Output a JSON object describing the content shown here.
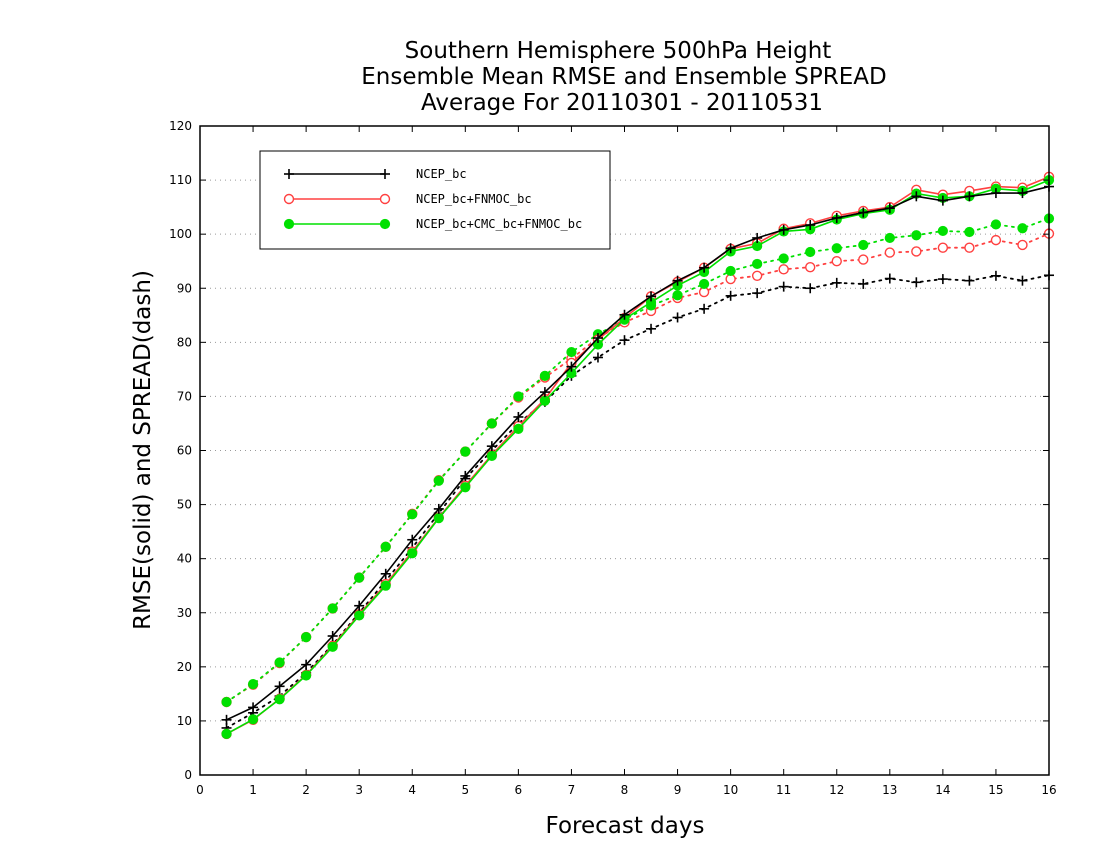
{
  "chart_data": {
    "type": "line",
    "title": [
      "Southern Hemisphere 500hPa Height",
      "Ensemble Mean RMSE and Ensemble SPREAD",
      "Average For 20110301 - 20110531"
    ],
    "xlabel": "Forecast days",
    "ylabel": "RMSE(solid) and SPREAD(dash)",
    "xlim": [
      0,
      16
    ],
    "ylim": [
      0,
      120
    ],
    "xticks": [
      0,
      1,
      2,
      3,
      4,
      5,
      6,
      7,
      8,
      9,
      10,
      11,
      12,
      13,
      14,
      15,
      16
    ],
    "yticks": [
      0,
      10,
      20,
      30,
      40,
      50,
      60,
      70,
      80,
      90,
      100,
      110,
      120
    ],
    "grid": "horizontal dotted",
    "legend_position": "top-left",
    "x": [
      0.5,
      1,
      1.5,
      2,
      2.5,
      3,
      3.5,
      4,
      4.5,
      5,
      5.5,
      6,
      6.5,
      7,
      7.5,
      8,
      8.5,
      9,
      9.5,
      10,
      10.5,
      11,
      11.5,
      12,
      12.5,
      13,
      13.5,
      14,
      14.5,
      15,
      15.5,
      16
    ],
    "series": [
      {
        "name": "NCEP_bc",
        "color": "#000000",
        "marker": "plus",
        "rmse": [
          10.2,
          12.5,
          16.4,
          20.4,
          25.7,
          31.3,
          37.2,
          43.5,
          49.2,
          55.3,
          60.8,
          66.2,
          70.8,
          75.5,
          80.8,
          85.1,
          88.5,
          91.4,
          93.8,
          97.4,
          99.3,
          100.8,
          101.7,
          103.0,
          104.0,
          104.8,
          107.0,
          106.2,
          107.0,
          107.6,
          107.6,
          108.8
        ],
        "spread": [
          8.7,
          11.5,
          14.6,
          18.9,
          24.1,
          30.0,
          35.9,
          42.0,
          48.4,
          54.8,
          60.0,
          65.0,
          69.0,
          73.8,
          77.2,
          80.4,
          82.5,
          84.6,
          86.2,
          88.6,
          89.1,
          90.3,
          90.0,
          91.0,
          90.8,
          91.8,
          91.1,
          91.7,
          91.4,
          92.3,
          91.4,
          92.4
        ]
      },
      {
        "name": "NCEP_bc+FNMOC_bc",
        "color": "#ff4040",
        "marker": "open-circle",
        "rmse": [
          7.6,
          10.2,
          14.1,
          18.5,
          23.9,
          29.7,
          35.3,
          41.3,
          47.6,
          53.5,
          59.2,
          64.5,
          69.5,
          76.2,
          80.5,
          84.5,
          88.5,
          91.2,
          93.8,
          97.3,
          98.3,
          101.0,
          102.0,
          103.4,
          104.3,
          105.0,
          108.2,
          107.3,
          108.0,
          108.8,
          108.6,
          110.6
        ]
      },
      {
        "name": "NCEP_bc+CMC_bc+FNMOC_bc",
        "color": "#00e000",
        "marker": "filled-circle",
        "rmse": [
          7.6,
          10.3,
          14.0,
          18.4,
          23.7,
          29.5,
          35.0,
          41.0,
          47.5,
          53.2,
          59.0,
          64.0,
          69.2,
          74.3,
          79.6,
          84.3,
          87.4,
          90.5,
          93.0,
          96.8,
          97.8,
          100.5,
          100.9,
          102.7,
          103.8,
          104.5,
          107.5,
          106.7,
          107.0,
          108.4,
          108.0,
          110.0
        ],
        "spread": [
          13.5,
          16.8,
          20.8,
          25.5,
          30.8,
          36.5,
          42.2,
          48.2,
          54.4,
          59.8,
          65.0,
          70.0,
          73.8,
          78.2,
          81.5,
          84.2,
          86.8,
          88.7,
          90.8,
          93.2,
          94.5,
          95.5,
          96.7,
          97.4,
          98.0,
          99.3,
          99.8,
          100.6,
          100.4,
          101.8,
          101.1,
          102.9
        ]
      }
    ],
    "extra_spread_red": [
      13.5,
      16.7,
      20.7,
      25.5,
      30.8,
      36.5,
      42.2,
      48.3,
      54.5,
      59.8,
      65.0,
      69.8,
      73.5,
      77.0,
      80.8,
      83.7,
      85.8,
      88.2,
      89.3,
      91.7,
      92.3,
      93.5,
      93.9,
      95.0,
      95.3,
      96.6,
      96.8,
      97.5,
      97.5,
      98.9,
      98.0,
      100.1
    ]
  }
}
